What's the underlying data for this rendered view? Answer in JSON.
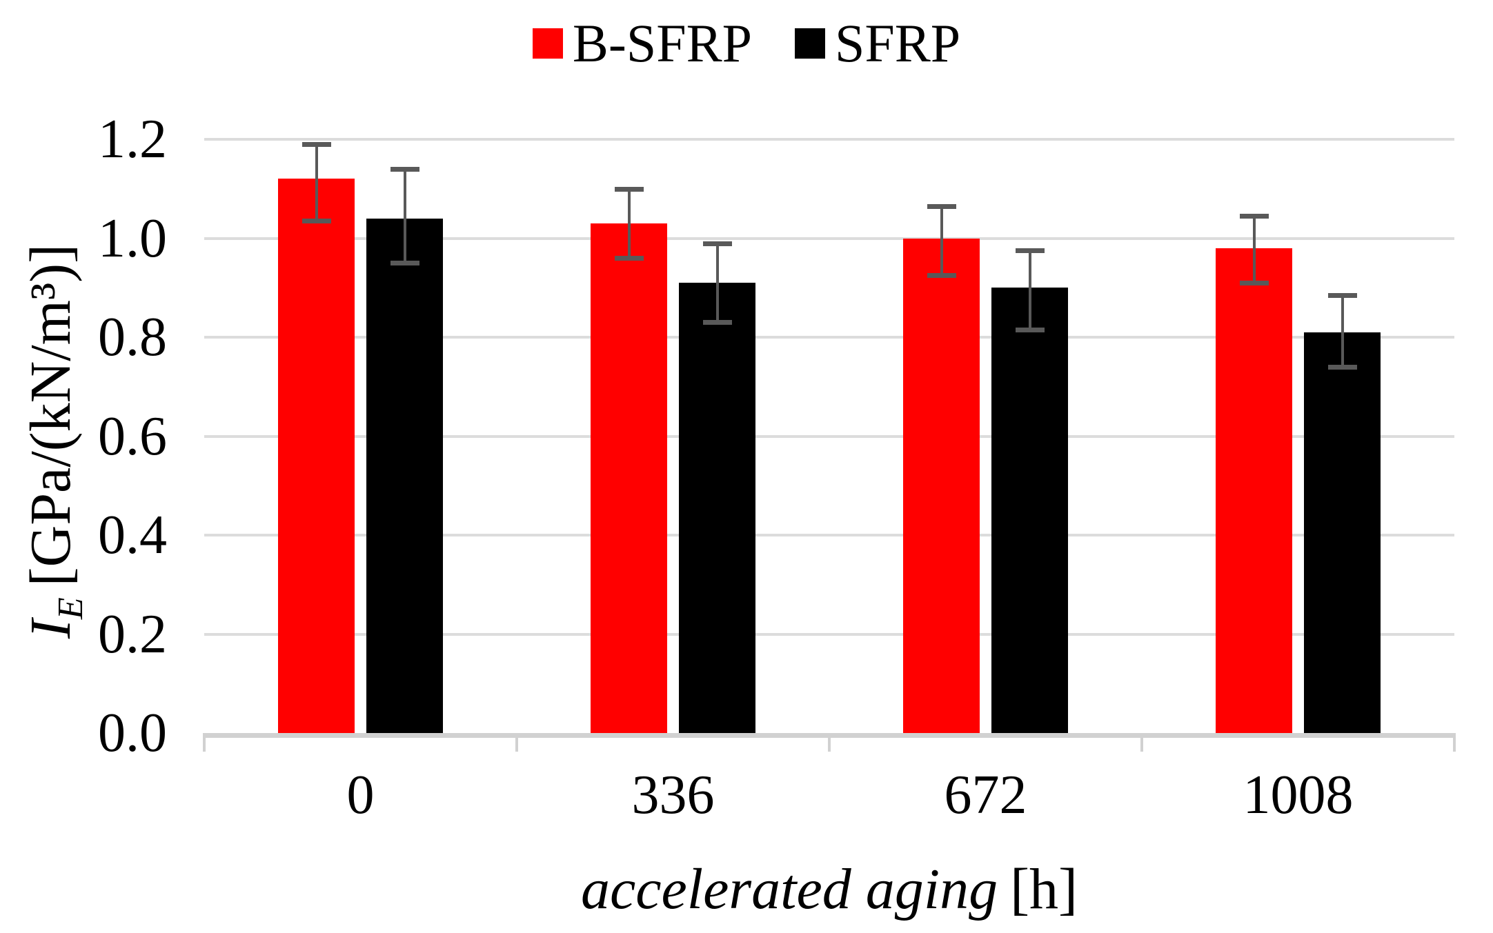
{
  "legend": {
    "items": [
      {
        "label": "B-SFRP",
        "swatch_color": "#FF0000"
      },
      {
        "label": "SFRP",
        "swatch_color": "#000000"
      }
    ]
  },
  "chart_data": {
    "type": "bar",
    "title": "",
    "categories": [
      "0",
      "336",
      "672",
      "1008"
    ],
    "series": [
      {
        "name": "B-SFRP",
        "color": "#FF0000",
        "values": [
          1.12,
          1.03,
          1.0,
          0.98
        ],
        "error_high": [
          1.19,
          1.1,
          1.065,
          1.045
        ],
        "error_low": [
          1.035,
          0.96,
          0.925,
          0.91
        ]
      },
      {
        "name": "SFRP",
        "color": "#000000",
        "values": [
          1.04,
          0.91,
          0.9,
          0.81
        ],
        "error_high": [
          1.14,
          0.99,
          0.975,
          0.885
        ],
        "error_low": [
          0.95,
          0.83,
          0.815,
          0.74
        ]
      }
    ],
    "xlabel_italic": "accelerated aging",
    "xlabel_unit": "[h]",
    "ylabel_symbol": "I",
    "ylabel_subscript": "E",
    "ylabel_unit": "[GPa/(kN/m³)]",
    "yticks": [
      0.0,
      0.2,
      0.4,
      0.6,
      0.8,
      1.0,
      1.2
    ],
    "ytick_format_decimals": 1,
    "ylim": [
      0,
      1.2
    ],
    "grid": true,
    "legend_position": "top-center",
    "error_bar_color": "#595959",
    "gridline_color": "#DCDCDC",
    "axis_line_color": "#D1D1D1"
  }
}
